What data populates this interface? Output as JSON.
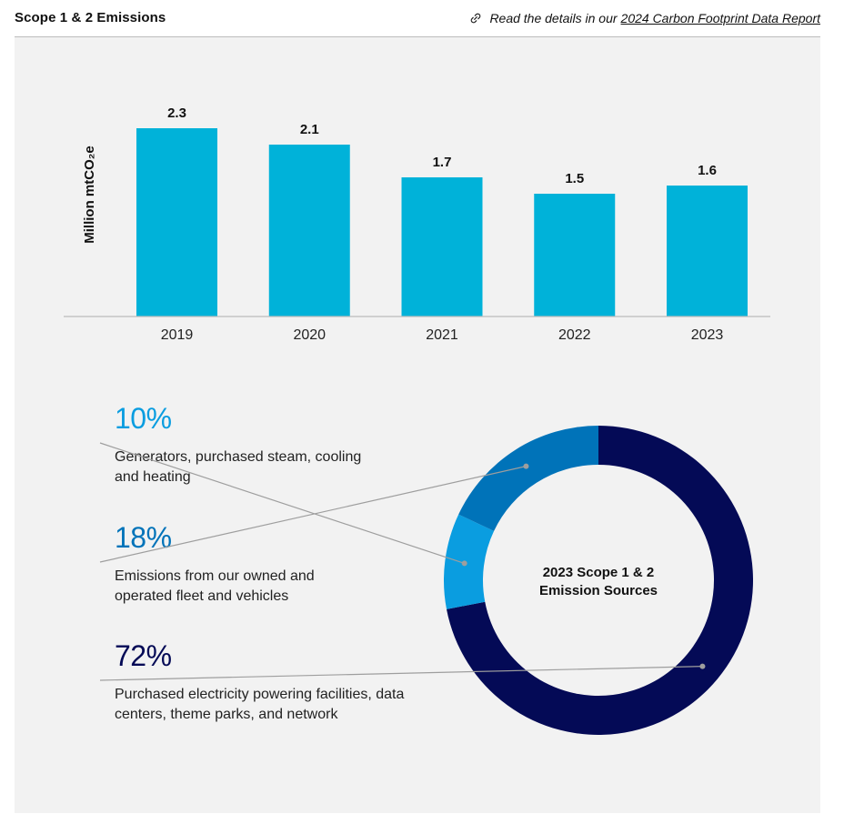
{
  "header": {
    "title": "Scope 1 & 2 Emissions",
    "link_prefix": "Read the details in our",
    "link_text": "2024 Carbon Footprint Data Report",
    "link_icon": "link-icon"
  },
  "chart_data": [
    {
      "type": "bar",
      "categories": [
        "2019",
        "2020",
        "2021",
        "2022",
        "2023"
      ],
      "values": [
        2.3,
        2.1,
        1.7,
        1.5,
        1.6
      ],
      "data_labels": [
        "2.3",
        "2.1",
        "1.7",
        "1.5",
        "1.6"
      ],
      "title": "",
      "xlabel": "",
      "ylabel": "Million mtCO₂e",
      "ylim": [
        0,
        2.3
      ],
      "grid": false,
      "color": "#00b2d9"
    },
    {
      "type": "pie",
      "title": "2023 Scope 1 & 2 Emission Sources",
      "labels": [
        "Generators, purchased steam, cooling and heating",
        "Emissions from our owned and operated fleet and vehicles",
        "Purchased electricity powering facilities, data centers, theme parks, and network"
      ],
      "values": [
        10,
        18,
        72
      ],
      "value_labels": [
        "10%",
        "18%",
        "72%"
      ],
      "colors": [
        "#0a9de0",
        "#0073b9",
        "#040a56"
      ],
      "donut": true
    }
  ]
}
